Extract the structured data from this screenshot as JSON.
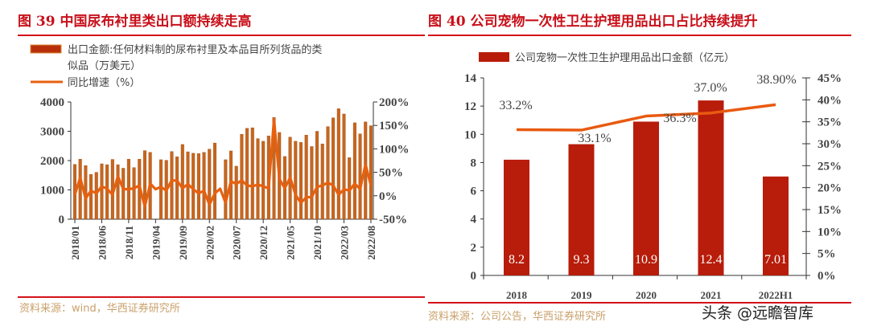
{
  "colors": {
    "title": "#c8101a",
    "rule": "#d4111a",
    "left_bar": "#c8661e",
    "left_bar_edge": "#8a3a0a",
    "left_line": "#e8600f",
    "right_bar": "#b81c0a",
    "right_line": "#e85a10",
    "source": "#c9a06a"
  },
  "watermark": "头条 @远瞻智库",
  "chart_data": [
    {
      "type": "bar+line",
      "title": "图  39 中国尿布衬里类出口额持续走高",
      "source": "资料来源：wind，华西证券研究所",
      "legend": [
        "出口金额:任何材料制的尿布衬里及本品目所列货品的类似品（万美元）",
        "同比增速（%）"
      ],
      "legend_line1": "出口金额:任何材料制的尿布衬里及本品目所列货品的类",
      "legend_line2": "似品（万美元）",
      "legend_placement": "top-left",
      "x_start": "2018/01",
      "x_end": "2022/08",
      "x_tick_labels": [
        "2018/01",
        "2018/06",
        "2018/11",
        "2019/04",
        "2019/09",
        "2020/02",
        "2020/07",
        "2020/12",
        "2021/05",
        "2021/10",
        "2022/03",
        "2022/08"
      ],
      "y_left": {
        "range": [
          0,
          4000
        ],
        "ticks": [
          "0",
          "1000",
          "2000",
          "3000",
          "4000"
        ]
      },
      "y_right": {
        "range": [
          -50,
          200
        ],
        "ticks": [
          "-50%",
          "0%",
          "50%",
          "100%",
          "150%",
          "200%"
        ]
      },
      "series": [
        {
          "name": "出口金额:任何材料制的尿布衬里及本品目所列货品的类似品（万美元）",
          "axis": "left",
          "kind": "bar",
          "values": [
            1870,
            2050,
            1830,
            1530,
            1600,
            1890,
            1860,
            2040,
            1860,
            1740,
            2050,
            1760,
            2050,
            2340,
            2280,
            null,
            2030,
            2010,
            2310,
            2130,
            2550,
            2300,
            2250,
            2240,
            2280,
            2390,
            2600,
            null,
            2030,
            2330,
            1810,
            2900,
            3100,
            3120,
            2750,
            2660,
            2840,
            3470,
            2960,
            2140,
            2800,
            2660,
            2620,
            2870,
            2480,
            3000,
            2570,
            3160,
            3460,
            3770,
            3590,
            2100,
            3290,
            2910,
            3320,
            3190
          ]
        },
        {
          "name": "同比增速（%）",
          "axis": "right",
          "kind": "line",
          "values": [
            2,
            39,
            -6,
            11,
            5,
            20,
            15,
            2,
            42,
            14,
            14,
            16,
            22,
            -23,
            26,
            14,
            19,
            11,
            33,
            32,
            16,
            25,
            14,
            5,
            11,
            -19,
            5,
            15,
            -15,
            31,
            25,
            33,
            22,
            20,
            24,
            20,
            16,
            163,
            36,
            16,
            39,
            2,
            -15,
            -3,
            -3,
            19,
            22,
            28,
            22,
            2,
            14,
            11,
            26,
            14,
            67,
            22
          ]
        }
      ]
    },
    {
      "type": "bar+line",
      "title": "图  40 公司宠物一次性卫生护理用品出口占比持续提升",
      "source": "资料来源：公司公告，华西证券研究所",
      "legend": [
        "公司宠物一次性卫生护理用品出口金额（亿元）"
      ],
      "legend_placement": "top",
      "categories": [
        "2018",
        "2019",
        "2020",
        "2021",
        "2022H1"
      ],
      "y_left": {
        "range": [
          0,
          14
        ],
        "ticks": [
          "0",
          "2",
          "4",
          "6",
          "8",
          "10",
          "12",
          "14"
        ]
      },
      "y_right": {
        "range": [
          0,
          45
        ],
        "ticks": [
          "0%",
          "5%",
          "10%",
          "15%",
          "20%",
          "25%",
          "30%",
          "35%",
          "40%",
          "45%"
        ]
      },
      "series": [
        {
          "name": "公司宠物一次性卫生护理用品出口金额（亿元）",
          "axis": "left",
          "kind": "bar",
          "values": [
            8.2,
            9.3,
            10.9,
            12.4,
            7.01
          ],
          "labels": [
            "8.2",
            "9.3",
            "10.9",
            "12.4",
            "7.01"
          ]
        },
        {
          "axis": "right",
          "kind": "line",
          "values": [
            33.2,
            33.1,
            36.3,
            37.0,
            38.9
          ],
          "labels": [
            "33.2%",
            "33.1%",
            "36.3%",
            "37.0%",
            "38.90%"
          ]
        }
      ]
    }
  ]
}
